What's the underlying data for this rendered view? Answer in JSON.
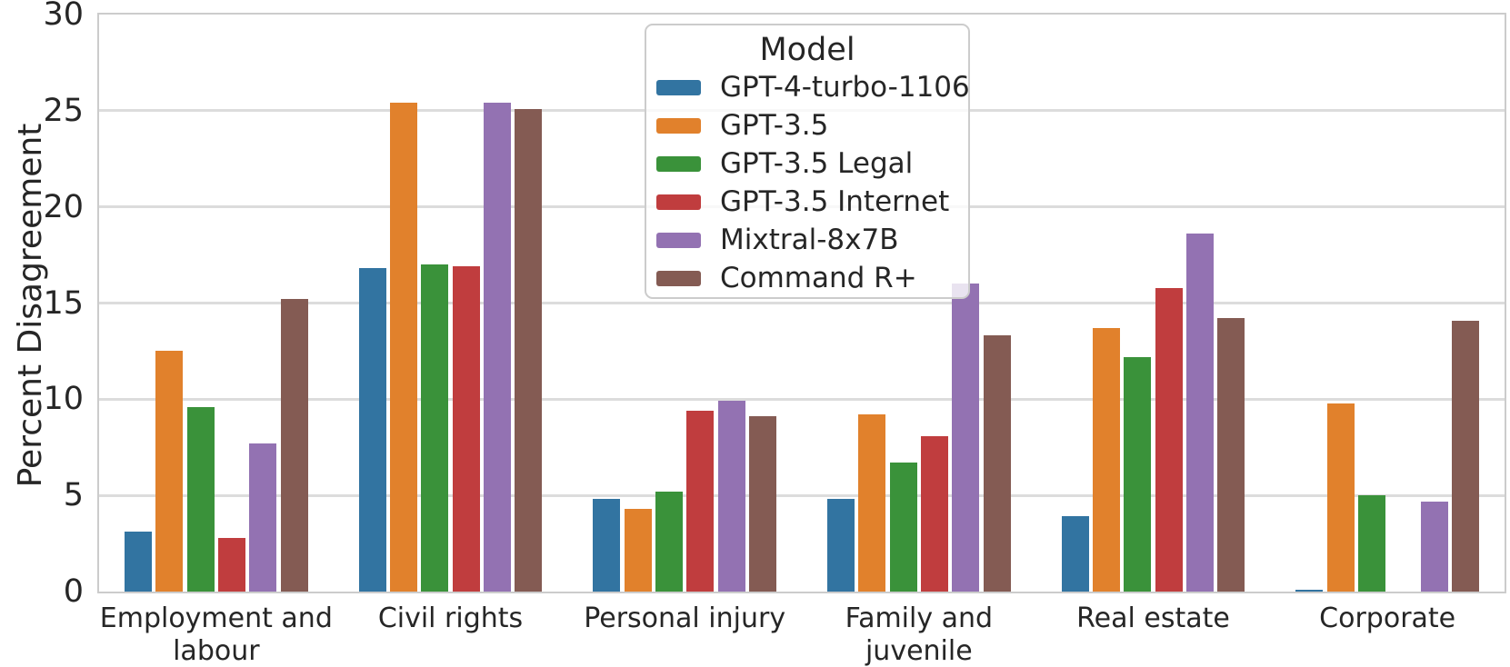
{
  "chart_data": {
    "type": "bar",
    "title": "",
    "xlabel": "",
    "ylabel": "Percent Disagreement",
    "ylim": [
      0,
      30
    ],
    "yticks": [
      0,
      5,
      10,
      15,
      20,
      25,
      30
    ],
    "grid": "horizontal",
    "legend": {
      "title": "Model",
      "position": "upper center"
    },
    "categories": [
      "Employment and\nlabour",
      "Civil rights",
      "Personal injury",
      "Family and\njuvenile",
      "Real estate",
      "Corporate"
    ],
    "series": [
      {
        "name": "GPT-4-turbo-1106",
        "color": "#3274a1",
        "values": [
          3.1,
          16.8,
          4.8,
          4.8,
          3.9,
          0.1
        ]
      },
      {
        "name": "GPT-3.5",
        "color": "#e1812c",
        "values": [
          12.5,
          25.4,
          4.3,
          9.2,
          13.7,
          9.8
        ]
      },
      {
        "name": "GPT-3.5 Legal",
        "color": "#3a923a",
        "values": [
          9.6,
          17.0,
          5.2,
          6.7,
          12.2,
          5.0
        ]
      },
      {
        "name": "GPT-3.5 Internet",
        "color": "#c03d3e",
        "values": [
          2.8,
          16.9,
          9.4,
          8.1,
          15.8,
          0.0
        ]
      },
      {
        "name": "Mixtral-8x7B",
        "color": "#9372b2",
        "values": [
          7.7,
          25.4,
          9.9,
          16.0,
          18.6,
          4.7
        ]
      },
      {
        "name": "Command R+",
        "color": "#845b53",
        "values": [
          15.2,
          25.1,
          9.1,
          13.3,
          14.2,
          14.1
        ]
      }
    ]
  },
  "style_colors": {
    "grid": "#dcdcdc",
    "spine": "#cccccc",
    "text": "#262626",
    "background": "#ffffff"
  }
}
